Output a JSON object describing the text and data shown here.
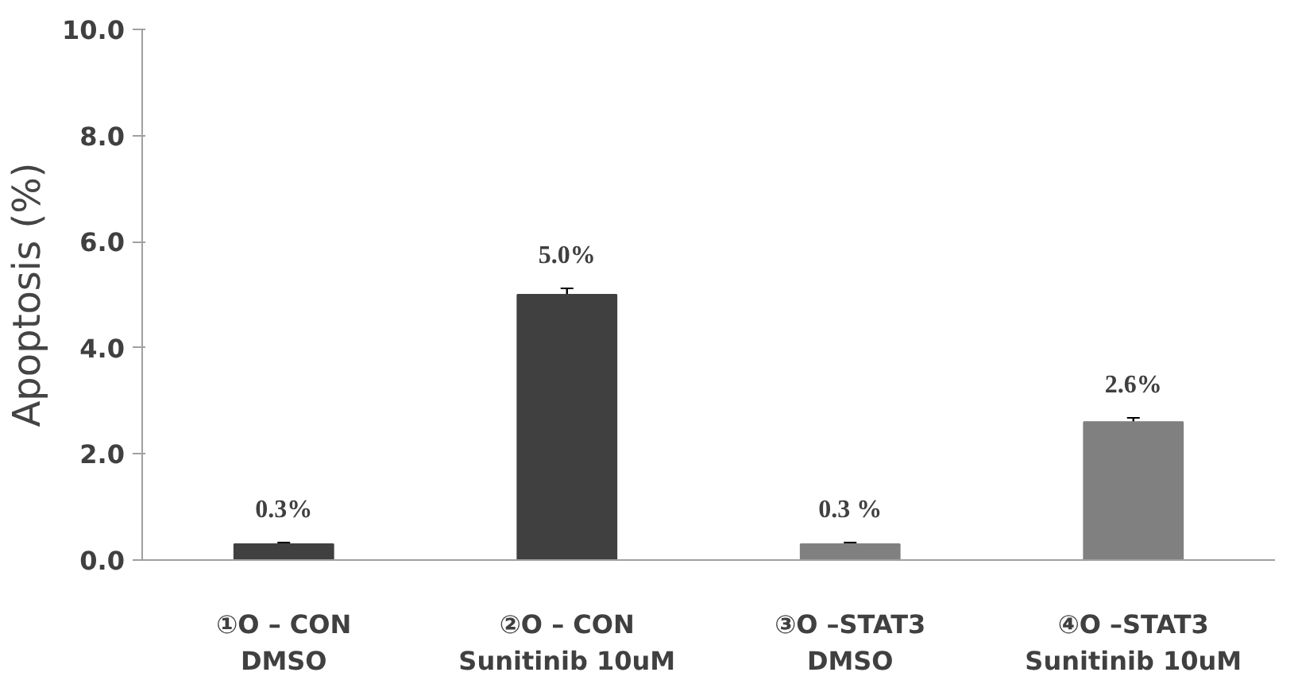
{
  "chart_data": {
    "type": "bar",
    "ylabel": "Apoptosis (%)",
    "categories": [
      "①O – CON\nDMSO",
      "②O – CON\nSunitinib 10uM",
      "③O –STAT3\nDMSO",
      "④O –STAT3\nSunitinib 10uM"
    ],
    "values": [
      0.3,
      5.0,
      0.3,
      2.6
    ],
    "colors": [
      "#404040",
      "#404040",
      "#808080",
      "#808080"
    ],
    "errors": [
      0.03,
      0.12,
      0.03,
      0.08
    ],
    "value_labels": [
      "0.3%",
      "5.0%",
      "0.3 %",
      "2.6%"
    ],
    "ylim": [
      0,
      10
    ],
    "yticks": [
      {
        "value": 0,
        "label": "0.0"
      },
      {
        "value": 2,
        "label": "2.0"
      },
      {
        "value": 4,
        "label": "4.0"
      },
      {
        "value": 6,
        "label": "6.0"
      },
      {
        "value": 8,
        "label": "8.0"
      },
      {
        "value": 10,
        "label": "10.0"
      }
    ],
    "grid": false
  }
}
